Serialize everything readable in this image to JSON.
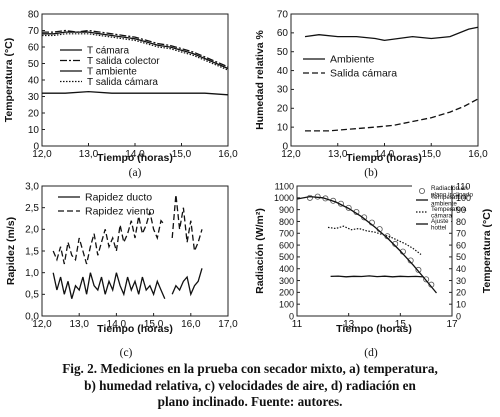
{
  "caption": {
    "line1": "Fig. 2. Mediciones en la prueba con secador mixto, a) temperatura,",
    "line2": "b) humedad relativa, c) velocidades de aire, d) radiación en",
    "line3": "plano inclinado. Fuente: autores."
  },
  "chart_data": [
    {
      "id": "a",
      "type": "line",
      "panel_label": "(a)",
      "xlabel": "Tiempo (horas)",
      "ylabel": "Temperatura (°C)",
      "xlim": [
        12.0,
        16.0
      ],
      "ylim": [
        0,
        80
      ],
      "xticks": [
        "12,0",
        "13,0",
        "14,0",
        "15,0",
        "16,0"
      ],
      "yticks": [
        "0",
        "10",
        "20",
        "30",
        "40",
        "50",
        "60",
        "70",
        "80"
      ],
      "legend_position": "left",
      "series": [
        {
          "name": "T cámara",
          "style": "solid",
          "x": [
            12.0,
            12.25,
            12.5,
            12.75,
            13.0,
            13.25,
            13.5,
            13.75,
            14.0,
            14.25,
            14.5,
            14.75,
            15.0,
            15.25,
            15.5,
            15.75,
            16.0
          ],
          "y": [
            68,
            68,
            69,
            69,
            69,
            68,
            67,
            66,
            65,
            63,
            61,
            60,
            58,
            56,
            53,
            50,
            47
          ]
        },
        {
          "name": "T salida colector",
          "style": "dashdot",
          "x": [
            12.0,
            12.25,
            12.5,
            12.75,
            13.0,
            13.25,
            13.5,
            13.75,
            14.0,
            14.25,
            14.5,
            14.75,
            15.0,
            15.25,
            15.5,
            15.75,
            16.0
          ],
          "y": [
            69,
            69,
            70,
            69,
            70,
            69,
            68,
            67,
            66,
            64,
            62,
            61,
            59,
            57,
            54,
            51,
            48
          ]
        },
        {
          "name": "T ambiente",
          "style": "solid",
          "x": [
            12.0,
            12.5,
            13.0,
            13.5,
            14.0,
            14.5,
            15.0,
            15.5,
            16.0
          ],
          "y": [
            32,
            32,
            33,
            32,
            32,
            32,
            32,
            32,
            31
          ]
        },
        {
          "name": "T salida cámara",
          "style": "dotted",
          "x": [
            12.0,
            12.25,
            12.5,
            12.75,
            13.0,
            13.25,
            13.5,
            13.75,
            14.0,
            14.25,
            14.5,
            14.75,
            15.0,
            15.25,
            15.5,
            15.75,
            16.0
          ],
          "y": [
            67,
            67,
            68,
            68,
            68,
            67,
            66,
            65,
            64,
            62,
            60,
            59,
            57,
            55,
            52,
            49,
            46
          ]
        }
      ]
    },
    {
      "id": "b",
      "type": "line",
      "panel_label": "(b)",
      "xlabel": "Tiempo (horas)",
      "ylabel": "Humedad relativa %",
      "xlim": [
        12.0,
        16.0
      ],
      "ylim": [
        0,
        70
      ],
      "xticks": [
        "12,0",
        "13,0",
        "14,0",
        "15,0",
        "16,0"
      ],
      "yticks": [
        "0",
        "10",
        "20",
        "30",
        "40",
        "50",
        "60",
        "70"
      ],
      "legend_position": "center-left",
      "series": [
        {
          "name": "Ambiente",
          "style": "solid",
          "x": [
            12.3,
            12.6,
            13.0,
            13.4,
            13.8,
            14.0,
            14.3,
            14.6,
            15.0,
            15.4,
            15.8,
            16.0
          ],
          "y": [
            58,
            59,
            58,
            58,
            57,
            56,
            57,
            58,
            57,
            58,
            62,
            63
          ]
        },
        {
          "name": "Salida cámara",
          "style": "dashed",
          "x": [
            12.3,
            12.8,
            13.3,
            13.8,
            14.2,
            14.6,
            15.0,
            15.4,
            15.7,
            16.0
          ],
          "y": [
            8,
            8,
            9,
            10,
            11,
            13,
            15,
            18,
            21,
            25
          ]
        }
      ]
    },
    {
      "id": "c",
      "type": "line",
      "panel_label": "(c)",
      "xlabel": "Tiempo (horas)",
      "ylabel": "Rapidez (m/s)",
      "xlim": [
        12.0,
        17.0
      ],
      "ylim": [
        0.0,
        3.0
      ],
      "xticks": [
        "12,0",
        "13,0",
        "14,0",
        "15,0",
        "16,0",
        "17,0"
      ],
      "yticks": [
        "0,0",
        "0,5",
        "1,0",
        "1,5",
        "2,0",
        "2,5",
        "3,0"
      ],
      "legend_position": "top-left",
      "series": [
        {
          "name": "Rapidez ducto",
          "style": "solid",
          "segments": [
            {
              "x": [
                12.3,
                12.4,
                12.5,
                12.6,
                12.7,
                12.8,
                12.9,
                13.0,
                13.1,
                13.2,
                13.3,
                13.4,
                13.5,
                13.6,
                13.7,
                13.8,
                13.9,
                14.0,
                14.1,
                14.2,
                14.3,
                14.4,
                14.5,
                14.6,
                14.7,
                14.8,
                14.9,
                15.0,
                15.1,
                15.2,
                15.3
              ],
              "y": [
                1.0,
                0.6,
                0.9,
                0.5,
                0.8,
                0.4,
                0.7,
                0.6,
                0.9,
                0.5,
                1.0,
                0.7,
                0.6,
                0.9,
                0.5,
                0.8,
                0.6,
                1.0,
                0.7,
                0.5,
                0.9,
                0.6,
                0.8,
                0.5,
                0.9,
                0.6,
                0.7,
                0.5,
                0.8,
                0.6,
                0.4
              ]
            },
            {
              "x": [
                15.5,
                15.6,
                15.7,
                15.8,
                15.9,
                16.0,
                16.1,
                16.2,
                16.3
              ],
              "y": [
                0.5,
                0.7,
                0.6,
                0.8,
                0.9,
                0.5,
                0.7,
                0.8,
                1.1
              ]
            }
          ]
        },
        {
          "name": "Rapidez viento",
          "style": "dashed",
          "segments": [
            {
              "x": [
                12.3,
                12.4,
                12.5,
                12.6,
                12.7,
                12.8,
                12.9,
                13.0,
                13.1,
                13.2,
                13.3,
                13.4,
                13.5,
                13.6,
                13.7,
                13.8,
                13.9,
                14.0,
                14.1,
                14.2,
                14.3,
                14.4,
                14.5,
                14.6,
                14.7,
                14.8,
                14.9,
                15.0,
                15.1,
                15.2,
                15.3
              ],
              "y": [
                1.5,
                1.3,
                1.6,
                1.2,
                1.7,
                1.4,
                1.3,
                1.8,
                1.5,
                1.2,
                1.6,
                1.9,
                1.4,
                1.7,
                2.0,
                1.6,
                1.8,
                1.5,
                2.1,
                1.7,
                1.9,
                2.2,
                1.8,
                2.3,
                1.9,
                2.1,
                2.4,
                2.0,
                1.8,
                2.2,
                2.1
              ]
            },
            {
              "x": [
                15.5,
                15.6,
                15.7,
                15.8,
                15.9,
                16.0,
                16.1,
                16.2,
                16.3
              ],
              "y": [
                1.8,
                2.8,
                2.0,
                2.5,
                1.7,
                2.2,
                1.5,
                1.7,
                2.0
              ]
            }
          ]
        }
      ]
    },
    {
      "id": "d",
      "type": "line",
      "panel_label": "(d)",
      "xlabel": "Tiempo (horas)",
      "ylabel": "Radiación (W/m²)",
      "ylabel_right": "Temperatura (°C)",
      "xlim": [
        11,
        17
      ],
      "ylim": [
        0,
        1100
      ],
      "ylim_right": [
        0,
        110
      ],
      "xticks": [
        "11",
        "13",
        "15",
        "17"
      ],
      "yticks": [
        "0",
        "100",
        "200",
        "300",
        "400",
        "500",
        "600",
        "700",
        "800",
        "900",
        "1000",
        "1100"
      ],
      "yticks_right": [
        "0",
        "10",
        "20",
        "30",
        "40",
        "50",
        "60",
        "70",
        "80",
        "90",
        "100",
        "110"
      ],
      "legend_position": "top-right",
      "legend": [
        "Radiación en plano inclinado",
        "Temperatura ambiente",
        "Temperatura cámara",
        "Ajuste hottel"
      ],
      "series": [
        {
          "name": "Radiación en plano inclinado",
          "style": "circles",
          "axis": "left",
          "x": [
            11.5,
            11.8,
            12.1,
            12.4,
            12.7,
            13.0,
            13.3,
            13.6,
            13.9,
            14.2,
            14.5,
            14.8,
            15.1,
            15.4,
            15.7,
            16.0,
            16.2
          ],
          "y": [
            1000,
            1010,
            995,
            975,
            950,
            915,
            880,
            835,
            790,
            735,
            675,
            610,
            545,
            470,
            390,
            310,
            265
          ]
        },
        {
          "name": "Temperatura ambiente",
          "style": "solid",
          "axis": "right",
          "x": [
            12.3,
            12.6,
            12.9,
            13.2,
            13.5,
            13.8,
            14.1,
            14.4,
            14.7,
            15.0,
            15.3,
            15.6,
            15.9
          ],
          "y": [
            33.5,
            33.8,
            33.2,
            33.6,
            33.4,
            33.9,
            33.3,
            33.7,
            33.2,
            33.6,
            33.3,
            33.5,
            33.1
          ]
        },
        {
          "name": "Temperatura cámara",
          "style": "dotted",
          "axis": "right",
          "x": [
            12.2,
            12.5,
            12.8,
            13.1,
            13.4,
            13.7,
            14.0,
            14.3,
            14.6,
            14.9,
            15.2,
            15.5,
            15.8
          ],
          "y": [
            75,
            74,
            76,
            73,
            74,
            72,
            71,
            69,
            67,
            64,
            61,
            57,
            52
          ]
        },
        {
          "name": "Ajuste hottel",
          "style": "solid",
          "axis": "left",
          "x": [
            11.0,
            11.5,
            12.0,
            12.5,
            13.0,
            13.5,
            14.0,
            14.5,
            15.0,
            15.5,
            16.0,
            16.4
          ],
          "y": [
            990,
            1010,
            1000,
            965,
            910,
            840,
            755,
            660,
            550,
            430,
            300,
            195
          ]
        }
      ]
    }
  ]
}
